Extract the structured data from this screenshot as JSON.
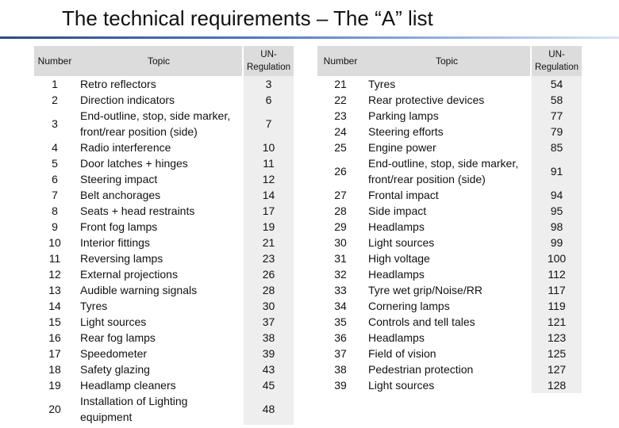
{
  "title": "The technical requirements – The “A” list",
  "headers": {
    "number": "Number",
    "topic": "Topic",
    "regulation": "UN-Regulation"
  },
  "left_rows": [
    {
      "number": "1",
      "topic": "Retro reflectors",
      "regulation": "3"
    },
    {
      "number": "2",
      "topic": "Direction indicators",
      "regulation": "6"
    },
    {
      "number": "3",
      "topic": "End-outline, stop, side marker, front/rear position (side)",
      "regulation": "7"
    },
    {
      "number": "4",
      "topic": "Radio interference",
      "regulation": "10"
    },
    {
      "number": "5",
      "topic": "Door latches + hinges",
      "regulation": "11"
    },
    {
      "number": "6",
      "topic": "Steering impact",
      "regulation": "12"
    },
    {
      "number": "7",
      "topic": "Belt anchorages",
      "regulation": "14"
    },
    {
      "number": "8",
      "topic": "Seats + head restraints",
      "regulation": "17"
    },
    {
      "number": "9",
      "topic": "Front fog lamps",
      "regulation": "19"
    },
    {
      "number": "10",
      "topic": "Interior fittings",
      "regulation": "21"
    },
    {
      "number": "11",
      "topic": "Reversing lamps",
      "regulation": "23"
    },
    {
      "number": "12",
      "topic": "External projections",
      "regulation": "26"
    },
    {
      "number": "13",
      "topic": "Audible warning signals",
      "regulation": "28"
    },
    {
      "number": "14",
      "topic": "Tyres",
      "regulation": "30"
    },
    {
      "number": "15",
      "topic": "Light sources",
      "regulation": "37"
    },
    {
      "number": "16",
      "topic": "Rear fog lamps",
      "regulation": "38"
    },
    {
      "number": "17",
      "topic": "Speedometer",
      "regulation": "39"
    },
    {
      "number": "18",
      "topic": "Safety glazing",
      "regulation": "43"
    },
    {
      "number": "19",
      "topic": "Headlamp cleaners",
      "regulation": "45"
    },
    {
      "number": "20",
      "topic": "Installation of Lighting equipment",
      "regulation": "48"
    }
  ],
  "right_rows": [
    {
      "number": "21",
      "topic": "Tyres",
      "regulation": "54"
    },
    {
      "number": "22",
      "topic": "Rear protective devices",
      "regulation": "58"
    },
    {
      "number": "23",
      "topic": "Parking lamps",
      "regulation": "77"
    },
    {
      "number": "24",
      "topic": "Steering efforts",
      "regulation": "79"
    },
    {
      "number": "25",
      "topic": "Engine power",
      "regulation": "85"
    },
    {
      "number": "26",
      "topic": "End-outline, stop, side marker, front/rear position (side)",
      "regulation": "91"
    },
    {
      "number": "27",
      "topic": "Frontal impact",
      "regulation": "94"
    },
    {
      "number": "28",
      "topic": "Side impact",
      "regulation": "95"
    },
    {
      "number": "29",
      "topic": "Headlamps",
      "regulation": "98"
    },
    {
      "number": "30",
      "topic": "Light sources",
      "regulation": "99"
    },
    {
      "number": "31",
      "topic": "High voltage",
      "regulation": "100"
    },
    {
      "number": "32",
      "topic": "Headlamps",
      "regulation": "112"
    },
    {
      "number": "33",
      "topic": "Tyre wet grip/Noise/RR",
      "regulation": "117"
    },
    {
      "number": "34",
      "topic": "Cornering lamps",
      "regulation": "119"
    },
    {
      "number": "35",
      "topic": "Controls and tell tales",
      "regulation": "121"
    },
    {
      "number": "36",
      "topic": "Headlamps",
      "regulation": "123"
    },
    {
      "number": "37",
      "topic": "Field of vision",
      "regulation": "125"
    },
    {
      "number": "38",
      "topic": "Pedestrian protection",
      "regulation": "127"
    },
    {
      "number": "39",
      "topic": "Light sources",
      "regulation": "128"
    }
  ]
}
